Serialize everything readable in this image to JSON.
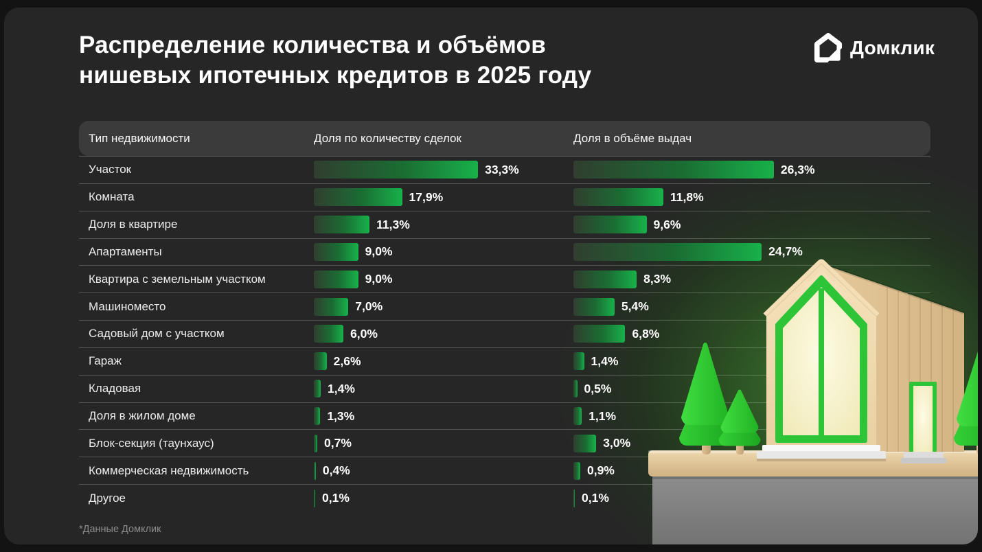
{
  "title": {
    "line1": "Распределение количества и объёмов",
    "line2": "нишевых ипотечных кредитов в 2025 году"
  },
  "logo": {
    "text": "Домклик",
    "icon": "domclick-house-icon"
  },
  "footnote": "*Данные Домклик",
  "table": {
    "columns": [
      "Тип недвижимости",
      "Доля по количеству сделок",
      "Доля в объёме выдач"
    ],
    "rows": [
      {
        "type": "Участок",
        "count_share": "33,3%",
        "volume_share": "26,3%",
        "count_value": 33.3,
        "volume_value": 26.3
      },
      {
        "type": "Комната",
        "count_share": "17,9%",
        "volume_share": "11,8%",
        "count_value": 17.9,
        "volume_value": 11.8
      },
      {
        "type": "Доля в квартире",
        "count_share": "11,3%",
        "volume_share": "9,6%",
        "count_value": 11.3,
        "volume_value": 9.6
      },
      {
        "type": "Апартаменты",
        "count_share": "9,0%",
        "volume_share": "24,7%",
        "count_value": 9.0,
        "volume_value": 24.7
      },
      {
        "type": "Квартира с земельным участком",
        "count_share": "9,0%",
        "volume_share": "8,3%",
        "count_value": 9.0,
        "volume_value": 8.3
      },
      {
        "type": "Машиноместо",
        "count_share": "7,0%",
        "volume_share": "5,4%",
        "count_value": 7.0,
        "volume_value": 5.4
      },
      {
        "type": "Садовый дом с участком",
        "count_share": "6,0%",
        "volume_share": "6,8%",
        "count_value": 6.0,
        "volume_value": 6.8
      },
      {
        "type": "Гараж",
        "count_share": "2,6%",
        "volume_share": "1,4%",
        "count_value": 2.6,
        "volume_value": 1.4
      },
      {
        "type": "Кладовая",
        "count_share": "1,4%",
        "volume_share": "0,5%",
        "count_value": 1.4,
        "volume_value": 0.5
      },
      {
        "type": "Доля в жилом доме",
        "count_share": "1,3%",
        "volume_share": "1,1%",
        "count_value": 1.3,
        "volume_value": 1.1
      },
      {
        "type": "Блок-секция (таунхаус)",
        "count_share": "0,7%",
        "volume_share": "3,0%",
        "count_value": 0.7,
        "volume_value": 3.0
      },
      {
        "type": "Коммерческая недвижимость",
        "count_share": "0,4%",
        "volume_share": "0,9%",
        "count_value": 0.4,
        "volume_value": 0.9
      },
      {
        "type": "Другое",
        "count_share": "0,1%",
        "volume_share": "0,1%",
        "count_value": 0.1,
        "volume_value": 0.1
      }
    ]
  },
  "chart_data": {
    "type": "bar",
    "orientation": "horizontal",
    "title": "Распределение количества и объёмов нишевых ипотечных кредитов в 2025 году",
    "categories": [
      "Участок",
      "Комната",
      "Доля в квартире",
      "Апартаменты",
      "Квартира с земельным участком",
      "Машиноместо",
      "Садовый дом с участком",
      "Гараж",
      "Кладовая",
      "Доля в жилом доме",
      "Блок-секция (таунхаус)",
      "Коммерческая недвижимость",
      "Другое"
    ],
    "series": [
      {
        "name": "Доля по количеству сделок",
        "unit": "%",
        "values": [
          33.3,
          17.9,
          11.3,
          9.0,
          9.0,
          7.0,
          6.0,
          2.6,
          1.4,
          1.3,
          0.7,
          0.4,
          0.1
        ]
      },
      {
        "name": "Доля в объёме выдач",
        "unit": "%",
        "values": [
          26.3,
          11.8,
          9.6,
          24.7,
          8.3,
          5.4,
          6.8,
          1.4,
          0.5,
          1.1,
          3.0,
          0.9,
          0.1
        ]
      }
    ],
    "value_labels": true,
    "grid": false,
    "legend_position": "column-headers",
    "source_note": "*Данные Домклик"
  },
  "colors": {
    "background": "#131313",
    "card": "#262626",
    "header_row": "#3b3b3b",
    "separator": "rgba(255,255,255,0.22)",
    "bar_gradient_start": "#303e2f",
    "bar_gradient_end": "#18b14a",
    "accent_green": "#1db04a",
    "glow_green": "#2e5c26",
    "text_primary": "#ffffff",
    "text_muted": "#8d8d8d"
  }
}
